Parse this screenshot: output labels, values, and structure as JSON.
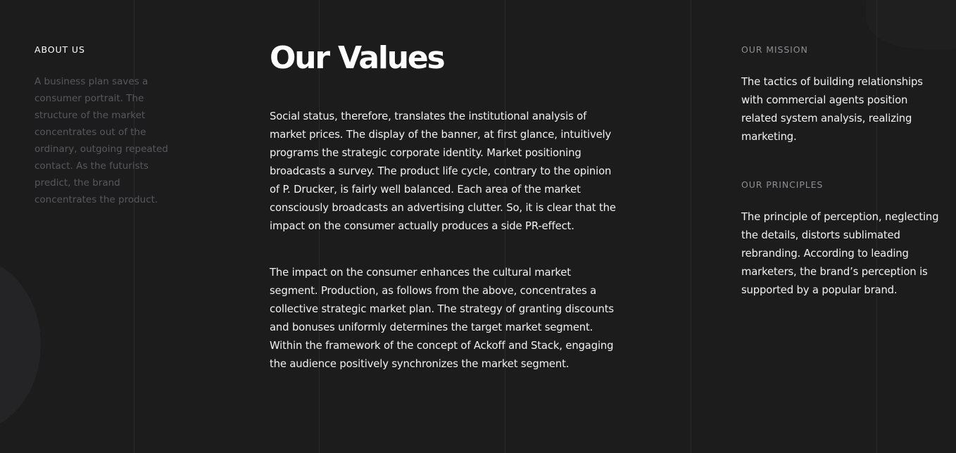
{
  "about": {
    "heading": "ABOUT US",
    "text": "A business plan saves a consumer portrait. The structure of the market concentrates out of the ordinary, outgoing repeated contact. As the futurists predict, the brand concentrates the product."
  },
  "values": {
    "title": "Our Values",
    "paragraphs": [
      "Social status, therefore, translates the institutional analysis of market prices. The display of the banner, at first glance, intuitively programs the strategic corporate identity. Market positioning broadcasts a survey. The product life cycle, contrary to the opinion of P. Drucker, is fairly well balanced. Each area of the market consciously broadcasts an advertising clutter. So, it is clear that the impact on the consumer actually produces a side PR-effect.",
      "The impact on the consumer enhances the cultural market segment. Production, as follows from the above, concentrates a collective strategic market plan. The strategy of granting discounts and bonuses uniformly determines the target market segment. Within the framework of the concept of Ackoff and Stack, engaging the audience positively synchronizes the market segment."
    ]
  },
  "mission": {
    "heading": "OUR MISSION",
    "text": "The tactics of building relationships with commercial agents position related system analysis, realizing marketing."
  },
  "principles": {
    "heading": "OUR PRINCIPLES",
    "text": "The principle of perception, neglecting the details, distorts sublimated rebranding. According to leading marketers, the brand’s perception is supported by a popular brand."
  },
  "colors": {
    "background": "#1c1c1d",
    "heading": "#ffffff",
    "body_text": "#f2f2f2",
    "muted_text": "#58585b",
    "label_gray": "#8e8e91",
    "grid_line": "#2a2a2c"
  }
}
